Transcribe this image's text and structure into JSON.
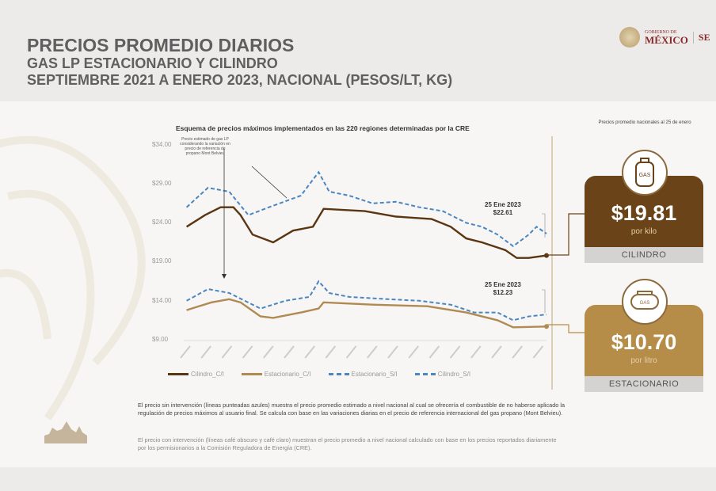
{
  "header": {
    "title": "PRECIOS PROMEDIO DIARIOS",
    "subtitle": "GAS LP ESTACIONARIO Y CILINDRO",
    "period": "SEPTIEMBRE 2021 A ENERO 2023, NACIONAL (PESOS/LT, KG)"
  },
  "logo": {
    "line1": "GOBIERNO DE",
    "line2": "MÉXICO",
    "partner": "SE"
  },
  "chart_data": {
    "type": "line",
    "title": "Esquema de precios máximos implementados en las 220 regiones determinadas por la CRE",
    "ylim": [
      9,
      34
    ],
    "yticks": [
      "$34.00",
      "$29.00",
      "$24.00",
      "$19.00",
      "$14.00",
      "$9.00"
    ],
    "ytick_values": [
      34,
      29,
      24,
      19,
      14,
      9
    ],
    "xlim": [
      "2021-09-01",
      "2023-01-25"
    ],
    "grid": false,
    "legend_placement": "bottom",
    "annotation": "Precio estimado de gas LP considerando la variación en precio de referencia de propano Mont Belvieu",
    "callouts": [
      {
        "date": "25 Ene 2023",
        "value": "$22.61"
      },
      {
        "date": "25 Ene 2023",
        "value": "$12.23"
      }
    ],
    "series": [
      {
        "name": "Cilindro_C/I",
        "color": "#5a3512",
        "style": "solid",
        "points": [
          [
            "2021-09-05",
            23.5
          ],
          [
            "2021-10-01",
            25
          ],
          [
            "2021-10-23",
            26
          ],
          [
            "2021-11-10",
            26
          ],
          [
            "2021-11-20",
            25
          ],
          [
            "2021-12-07",
            22.5
          ],
          [
            "2022-01-05",
            21.5
          ],
          [
            "2022-02-02",
            23
          ],
          [
            "2022-03-02",
            23.5
          ],
          [
            "2022-03-17",
            25.8
          ],
          [
            "2022-05-14",
            25.5
          ],
          [
            "2022-06-27",
            24.8
          ],
          [
            "2022-08-16",
            24.5
          ],
          [
            "2022-09-12",
            23.5
          ],
          [
            "2022-10-04",
            22
          ],
          [
            "2022-10-26",
            21.5
          ],
          [
            "2022-11-28",
            20.5
          ],
          [
            "2022-12-14",
            19.5
          ],
          [
            "2022-12-31",
            19.5
          ],
          [
            "2023-01-25",
            19.81
          ]
        ]
      },
      {
        "name": "Estacionario_C/I",
        "color": "#b08a52",
        "style": "solid",
        "points": [
          [
            "2021-09-05",
            12.8
          ],
          [
            "2021-10-10",
            13.8
          ],
          [
            "2021-11-04",
            14.2
          ],
          [
            "2021-11-20",
            13.8
          ],
          [
            "2021-12-18",
            12
          ],
          [
            "2022-01-05",
            11.8
          ],
          [
            "2022-02-13",
            12.5
          ],
          [
            "2022-03-10",
            13
          ],
          [
            "2022-03-17",
            13.8
          ],
          [
            "2022-05-25",
            13.5
          ],
          [
            "2022-08-10",
            13.3
          ],
          [
            "2022-10-04",
            12.5
          ],
          [
            "2022-11-17",
            11.5
          ],
          [
            "2022-12-09",
            10.6
          ],
          [
            "2023-01-25",
            10.7
          ]
        ]
      },
      {
        "name": "Estacionario_S/I",
        "color": "#4a86c0",
        "style": "dashed",
        "points": [
          [
            "2021-09-05",
            14
          ],
          [
            "2021-10-05",
            15.5
          ],
          [
            "2021-11-04",
            15
          ],
          [
            "2021-11-15",
            14.5
          ],
          [
            "2021-12-18",
            13
          ],
          [
            "2022-01-22",
            14
          ],
          [
            "2022-02-25",
            14.5
          ],
          [
            "2022-03-10",
            16.5
          ],
          [
            "2022-03-25",
            15
          ],
          [
            "2022-04-22",
            14.5
          ],
          [
            "2022-06-16",
            14.2
          ],
          [
            "2022-07-30",
            14
          ],
          [
            "2022-09-12",
            13.5
          ],
          [
            "2022-10-15",
            12.5
          ],
          [
            "2022-11-17",
            12.5
          ],
          [
            "2022-12-09",
            11.5
          ],
          [
            "2022-12-31",
            12
          ],
          [
            "2023-01-25",
            12.23
          ]
        ]
      },
      {
        "name": "Cilindro_S/I",
        "color": "#4a86c0",
        "style": "dashed",
        "points": [
          [
            "2021-09-05",
            26
          ],
          [
            "2021-10-05",
            28.5
          ],
          [
            "2021-11-04",
            28
          ],
          [
            "2021-12-01",
            25
          ],
          [
            "2021-12-30",
            26
          ],
          [
            "2022-02-13",
            27.5
          ],
          [
            "2022-03-10",
            30.5
          ],
          [
            "2022-03-25",
            28
          ],
          [
            "2022-04-22",
            27.5
          ],
          [
            "2022-05-25",
            26.5
          ],
          [
            "2022-06-27",
            26.7
          ],
          [
            "2022-07-30",
            26
          ],
          [
            "2022-09-01",
            25.5
          ],
          [
            "2022-10-04",
            24
          ],
          [
            "2022-10-26",
            23.5
          ],
          [
            "2022-11-17",
            22.5
          ],
          [
            "2022-12-09",
            21
          ],
          [
            "2022-12-31",
            22.5
          ],
          [
            "2023-01-11",
            23.5
          ],
          [
            "2023-01-25",
            22.61
          ]
        ]
      }
    ]
  },
  "summary": {
    "title": "Precios promedio nacionales al 25 de enero",
    "cards": [
      {
        "price": "$19.81",
        "unit": "por kilo",
        "label": "CILINDRO",
        "color": "#6b4318",
        "icon": "gas-cylinder-icon",
        "icon_text": "GAS"
      },
      {
        "price": "$10.70",
        "unit": "por litro",
        "label": "ESTACIONARIO",
        "color": "#b68d48",
        "icon": "gas-tank-icon",
        "icon_text": "GAS"
      }
    ]
  },
  "notes": [
    "El precio sin intervención (líneas punteadas azules) muestra el precio promedio estimado a nivel nacional al cual se ofrecería el combustible de no haberse aplicado la regulación de precios máximos al usuario final. Se calcula con base en las variaciones diarias en el precio de referencia internacional del gas propano (Mont Belvieu).",
    "El precio con intervención (líneas café obscuro y café claro) muestran el precio promedio a nivel nacional calculado con base en los precios reportados diariamente por los permisionarios a la Comisión Reguladora de Energía (CRE)."
  ]
}
